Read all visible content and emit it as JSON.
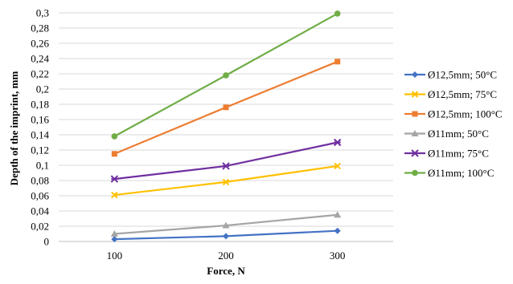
{
  "chart_data": {
    "type": "line",
    "title": "",
    "xlabel": "Force, N",
    "ylabel": "Depth of the imprint, mm",
    "categories": [
      "100",
      "200",
      "300"
    ],
    "y_ticks": [
      "0",
      "0,02",
      "0,04",
      "0,06",
      "0,08",
      "0,1",
      "0,12",
      "0,14",
      "0,16",
      "0,18",
      "0,2",
      "0,22",
      "0,24",
      "0,26",
      "0,28",
      "0,3"
    ],
    "ylim": [
      0,
      0.3
    ],
    "grid": "horizontal",
    "legend_position": "right",
    "series": [
      {
        "name": "Ø12,5mm; 50°C",
        "values": [
          0.003,
          0.007,
          0.014
        ],
        "color": "#4472C4",
        "marker": "diamond"
      },
      {
        "name": "Ø12,5mm; 75°C",
        "values": [
          0.061,
          0.078,
          0.099
        ],
        "color": "#FFC000",
        "marker": "x"
      },
      {
        "name": "Ø12,5mm; 100°C",
        "values": [
          0.115,
          0.176,
          0.236
        ],
        "color": "#ED7D31",
        "marker": "square"
      },
      {
        "name": "Ø11mm; 50°C",
        "values": [
          0.01,
          0.021,
          0.035
        ],
        "color": "#A5A5A5",
        "marker": "triangle"
      },
      {
        "name": "Ø11mm; 75°C",
        "values": [
          0.082,
          0.099,
          0.13
        ],
        "color": "#7030A0",
        "marker": "star"
      },
      {
        "name": "Ø11mm; 100°C",
        "values": [
          0.138,
          0.218,
          0.299
        ],
        "color": "#70AD47",
        "marker": "circle"
      }
    ]
  }
}
